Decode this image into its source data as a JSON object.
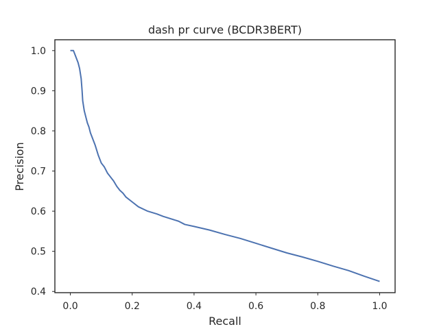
{
  "chart_data": {
    "type": "line",
    "title": "dash pr curve (BCDR3BERT)",
    "xlabel": "Recall",
    "ylabel": "Precision",
    "xlim": [
      -0.05,
      1.05
    ],
    "ylim": [
      0.397,
      1.027
    ],
    "xticks": [
      0.0,
      0.2,
      0.4,
      0.6,
      0.8,
      1.0
    ],
    "xtick_labels": [
      "0.0",
      "0.2",
      "0.4",
      "0.6",
      "0.8",
      "1.0"
    ],
    "yticks": [
      0.4,
      0.5,
      0.6,
      0.7,
      0.8,
      0.9,
      1.0
    ],
    "ytick_labels": [
      "0.4",
      "0.5",
      "0.6",
      "0.7",
      "0.8",
      "0.9",
      "1.0"
    ],
    "grid": false,
    "series": [
      {
        "color": "#4c72b0",
        "x": [
          0.0,
          0.01,
          0.015,
          0.02,
          0.025,
          0.03,
          0.035,
          0.038,
          0.04,
          0.045,
          0.05,
          0.055,
          0.06,
          0.065,
          0.07,
          0.08,
          0.09,
          0.1,
          0.11,
          0.12,
          0.13,
          0.14,
          0.15,
          0.16,
          0.17,
          0.18,
          0.2,
          0.22,
          0.25,
          0.28,
          0.3,
          0.35,
          0.37,
          0.4,
          0.45,
          0.5,
          0.55,
          0.6,
          0.65,
          0.7,
          0.75,
          0.8,
          0.85,
          0.9,
          0.95,
          1.0
        ],
        "y": [
          1.0,
          1.0,
          0.99,
          0.98,
          0.97,
          0.955,
          0.93,
          0.9,
          0.875,
          0.85,
          0.835,
          0.82,
          0.81,
          0.795,
          0.785,
          0.765,
          0.74,
          0.72,
          0.71,
          0.695,
          0.685,
          0.675,
          0.662,
          0.652,
          0.645,
          0.635,
          0.623,
          0.611,
          0.6,
          0.593,
          0.587,
          0.575,
          0.567,
          0.562,
          0.553,
          0.542,
          0.532,
          0.52,
          0.508,
          0.496,
          0.486,
          0.475,
          0.463,
          0.452,
          0.438,
          0.425
        ]
      }
    ]
  }
}
